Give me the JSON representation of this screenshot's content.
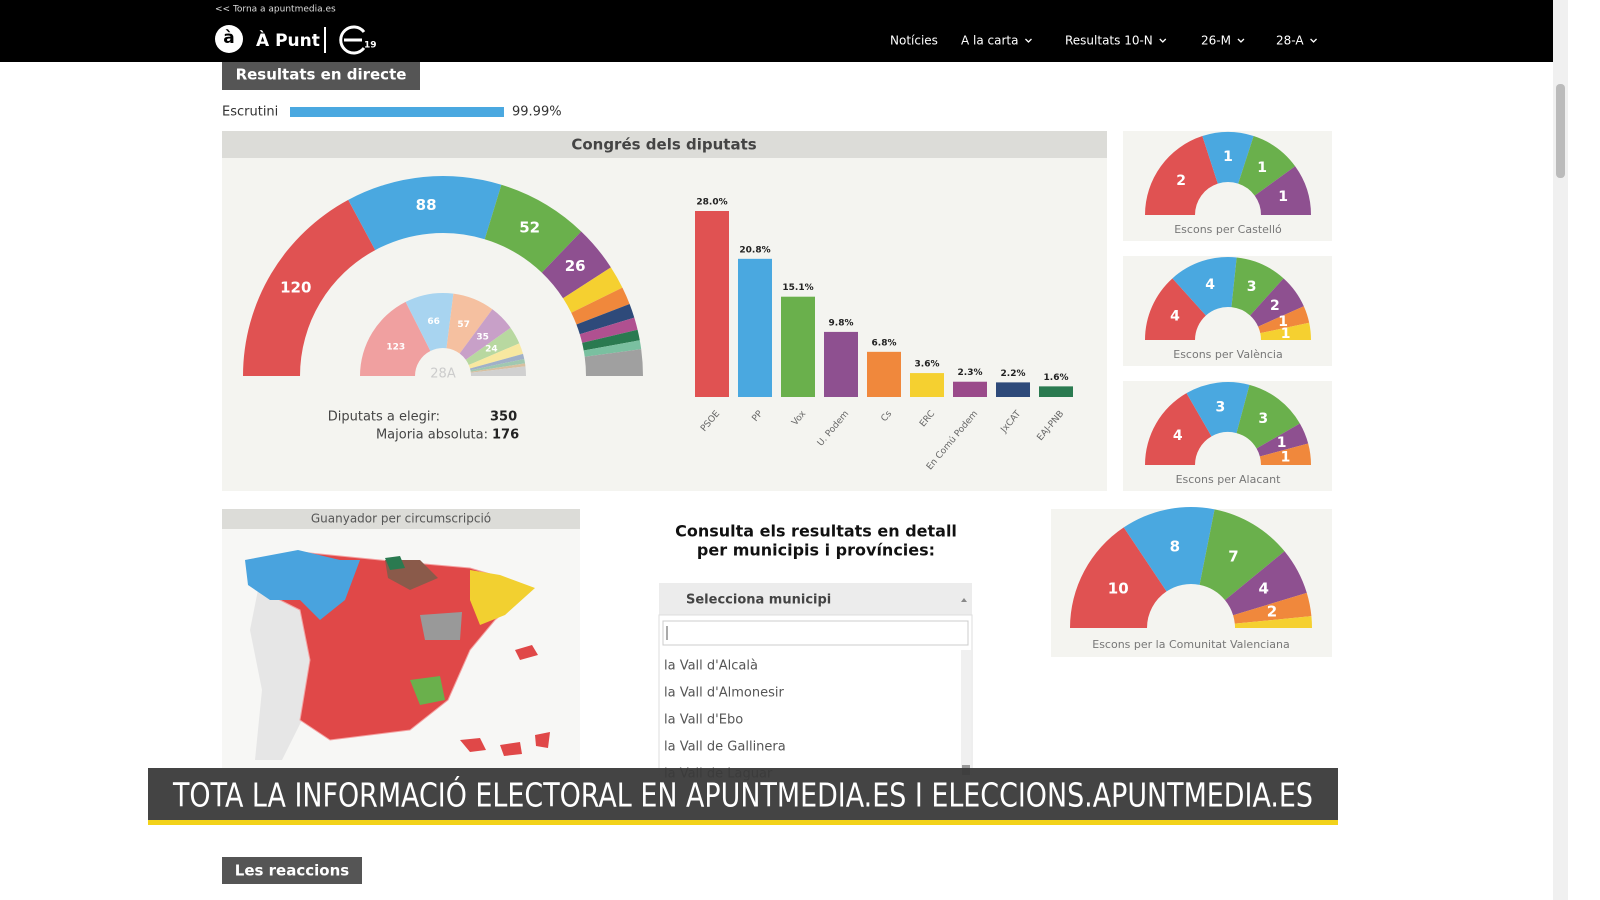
{
  "top_link": "<< Torna a apuntmedia.es",
  "logo": {
    "name": "À Punt",
    "badge": "19"
  },
  "nav": [
    "Notícies",
    "A la carta",
    "Resultats 10-N",
    "26-M",
    "28-A"
  ],
  "section_title": "Resultats en directe",
  "scrutiny": {
    "label": "Escrutini",
    "value": 99.99,
    "value_label": "99.99%",
    "color": "#4aa8e0"
  },
  "congress": {
    "title": "Congrés dels diputats",
    "seats_label": "Diputats a elegir:",
    "seats": 350,
    "majority_label": "Majoria absoluta:",
    "majority": 176
  },
  "chart_data": [
    {
      "type": "half-donut",
      "values": [
        120,
        88,
        52,
        26,
        13,
        10,
        8,
        7,
        6,
        5,
        15
      ],
      "colors": [
        "#e05252",
        "#4aa8e0",
        "#6ab04c",
        "#8e5090",
        "#f5d030",
        "#f0883c",
        "#2e4a7a",
        "#b05090",
        "#2a7a50",
        "#7ac0a0",
        "#a0a0a0"
      ]
    },
    {
      "type": "half-donut",
      "center_label": "28A",
      "values": [
        123,
        66,
        57,
        35,
        24,
        15,
        7,
        6,
        4,
        13
      ],
      "colors": [
        "#f0a0a0",
        "#a8d4f0",
        "#f5c0a0",
        "#c8a0c8",
        "#b8d8a0",
        "#f8e8a0",
        "#a0b0c8",
        "#a0c8b0",
        "#d8c0a0",
        "#d0d0d0"
      ]
    },
    {
      "type": "bar",
      "categories": [
        "PSOE",
        "PP",
        "Vox",
        "U. Podem",
        "Cs",
        "ERC",
        "En Comú Podem",
        "JxCAT",
        "EAJ-PNB"
      ],
      "values": [
        28.0,
        20.8,
        15.1,
        9.8,
        6.8,
        3.6,
        2.3,
        2.2,
        1.6
      ],
      "value_labels": [
        "28.0%",
        "20.8%",
        "15.1%",
        "9.8%",
        "6.8%",
        "3.6%",
        "2.3%",
        "2.2%",
        "1.6%"
      ],
      "colors": [
        "#e05252",
        "#4aa8e0",
        "#6ab04c",
        "#8e5090",
        "#f0883c",
        "#f5d030",
        "#9a4a8a",
        "#2e4a7a",
        "#2a7a50"
      ]
    },
    {
      "type": "half-donut",
      "title": "Escons per Castelló",
      "values": [
        2,
        1,
        1,
        1
      ],
      "colors": [
        "#e05252",
        "#4aa8e0",
        "#6ab04c",
        "#8e5090"
      ]
    },
    {
      "type": "half-donut",
      "title": "Escons per València",
      "values": [
        4,
        4,
        3,
        2,
        1,
        1
      ],
      "colors": [
        "#e05252",
        "#4aa8e0",
        "#6ab04c",
        "#8e5090",
        "#f0883c",
        "#f5d030"
      ]
    },
    {
      "type": "half-donut",
      "title": "Escons per Alacant",
      "values": [
        4,
        3,
        3,
        1,
        1
      ],
      "colors": [
        "#e05252",
        "#4aa8e0",
        "#6ab04c",
        "#8e5090",
        "#f0883c"
      ]
    },
    {
      "type": "half-donut",
      "title": "Escons per la Comunitat Valenciana",
      "values": [
        10,
        8,
        7,
        4,
        2,
        1
      ],
      "colors": [
        "#e05252",
        "#4aa8e0",
        "#6ab04c",
        "#8e5090",
        "#f0883c",
        "#f5d030"
      ]
    }
  ],
  "map": {
    "title": "Guanyador per circumscripció"
  },
  "lookup": {
    "heading": [
      "Consulta els resultats en detall",
      "per municipis i províncies:"
    ],
    "select": "Selecciona municipi",
    "options": [
      "la Vall d'Alcalà",
      "la Vall d'Almonesir",
      "la Vall d'Ebo",
      "la Vall de Gallinera",
      "la Vall de Laguar"
    ]
  },
  "banner": "TOTA LA INFORMACIÓ ELECTORAL EN APUNTMEDIA.ES I ELECCIONS.APUNTMEDIA.ES",
  "reactions_title": "Les reaccions"
}
